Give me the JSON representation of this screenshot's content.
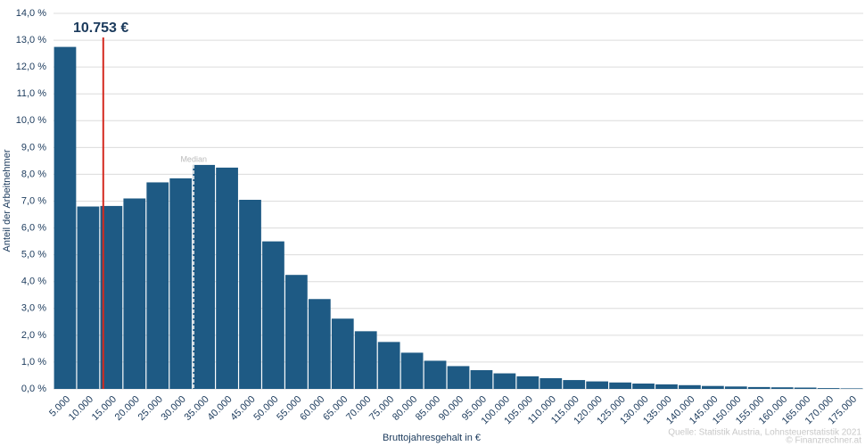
{
  "chart_data": {
    "type": "bar",
    "y_label": "Anteil der Arbeitnehmer",
    "x_label": "Bruttojahresgehalt in €",
    "source": "Quelle: Statistik Austria, Lohnsteuerstatistik 2021",
    "copyright": "© Finanzrechner.at",
    "categories": [
      "5.000",
      "10.000",
      "15.000",
      "20.000",
      "25.000",
      "30.000",
      "35.000",
      "40.000",
      "45.000",
      "50.000",
      "55.000",
      "60.000",
      "65.000",
      "70.000",
      "75.000",
      "80.000",
      "85.000",
      "90.000",
      "95.000",
      "100.000",
      "105.000",
      "110.000",
      "115.000",
      "120.000",
      "125.000",
      "130.000",
      "135.000",
      "140.000",
      "145.000",
      "150.000",
      "155.000",
      "160.000",
      "165.000",
      "170.000",
      "175.000"
    ],
    "values": [
      12.75,
      6.8,
      6.82,
      7.1,
      7.7,
      7.85,
      8.35,
      8.25,
      7.05,
      5.5,
      4.25,
      3.35,
      2.62,
      2.15,
      1.75,
      1.35,
      1.05,
      0.85,
      0.7,
      0.58,
      0.47,
      0.4,
      0.33,
      0.28,
      0.24,
      0.2,
      0.17,
      0.14,
      0.11,
      0.09,
      0.07,
      0.06,
      0.05,
      0.03,
      0.02
    ],
    "color": "#1e5a84",
    "xlim": [
      0,
      175000
    ],
    "ylim": [
      0,
      14
    ],
    "yticks": [
      {
        "value": 0,
        "label": "0,0 %"
      },
      {
        "value": 1,
        "label": "1,0 %"
      },
      {
        "value": 2,
        "label": "2,0 %"
      },
      {
        "value": 3,
        "label": "3,0 %"
      },
      {
        "value": 4,
        "label": "4,0 %"
      },
      {
        "value": 5,
        "label": "5,0 %"
      },
      {
        "value": 6,
        "label": "6,0 %"
      },
      {
        "value": 7,
        "label": "7,0 %"
      },
      {
        "value": 8,
        "label": "8,0 %"
      },
      {
        "value": 9,
        "label": "9,0 %"
      },
      {
        "value": 10,
        "label": "10,0 %"
      },
      {
        "value": 11,
        "label": "11,0 %"
      },
      {
        "value": 12,
        "label": "12,0 %"
      },
      {
        "value": 13,
        "label": "13,0 %"
      },
      {
        "value": 14,
        "label": "14,0 %"
      }
    ],
    "grid": true,
    "marker": {
      "label": "10.753 €",
      "x": 10753,
      "color": "#d42a20"
    },
    "median": {
      "label": "Median",
      "x": 30300
    }
  }
}
